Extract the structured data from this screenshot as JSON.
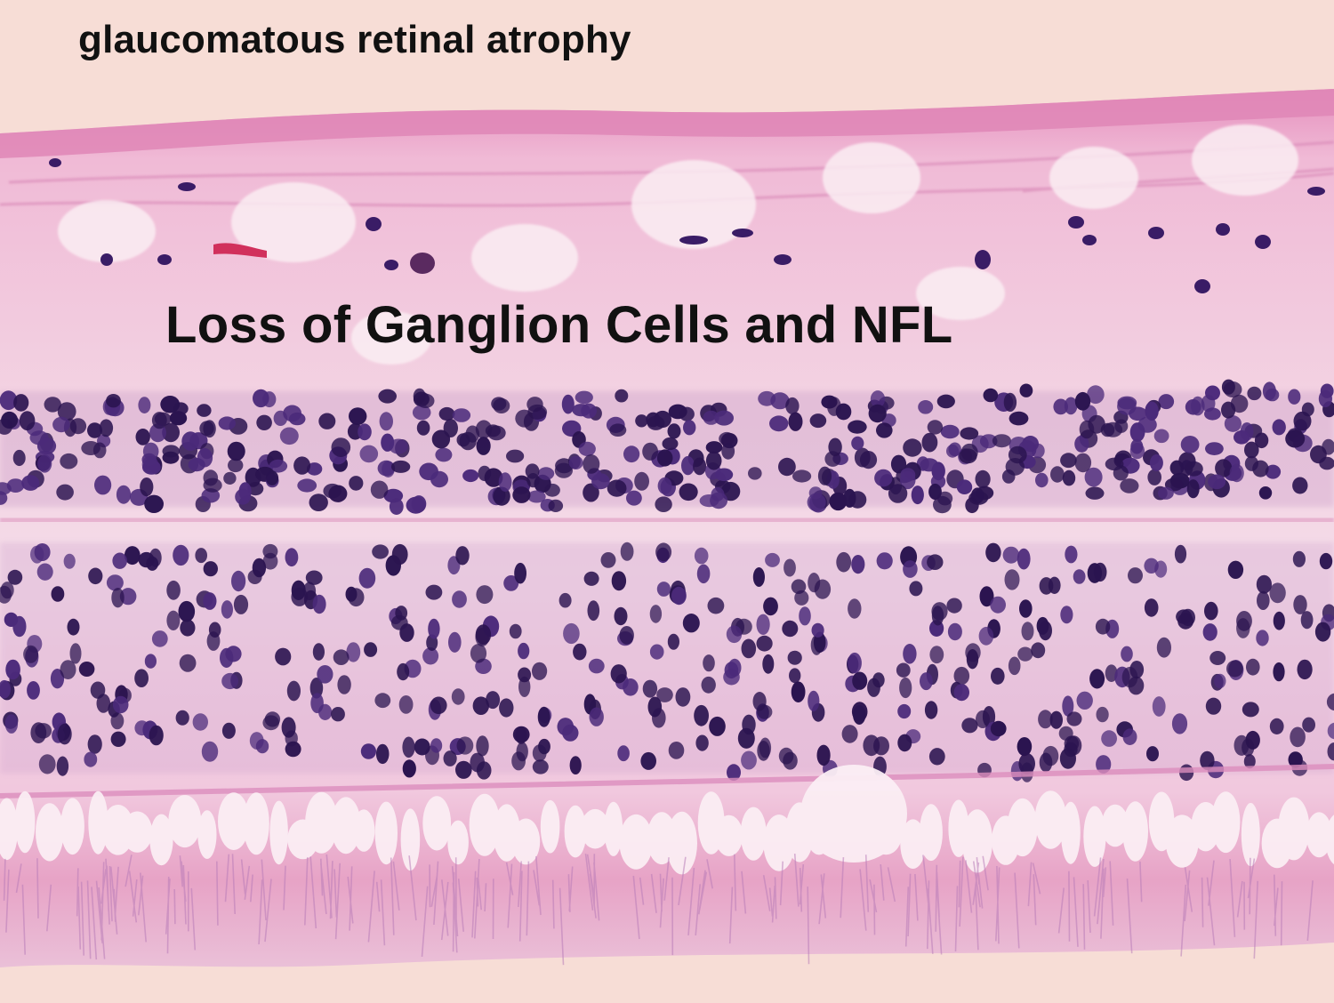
{
  "slide": {
    "title": "glaucomatous retinal atrophy",
    "annotation": "Loss of Ganglion Cells and NFL"
  },
  "image": {
    "subject": "retina-histology-section",
    "colors": {
      "background": "#f7ddd6",
      "stroma_pink": "#e9a5c6",
      "stroma_light": "#f3cde0",
      "nuclei_dark": "#2b1450",
      "nuclei_purple": "#4b2a7a",
      "vessel_red": "#d1305c"
    }
  }
}
